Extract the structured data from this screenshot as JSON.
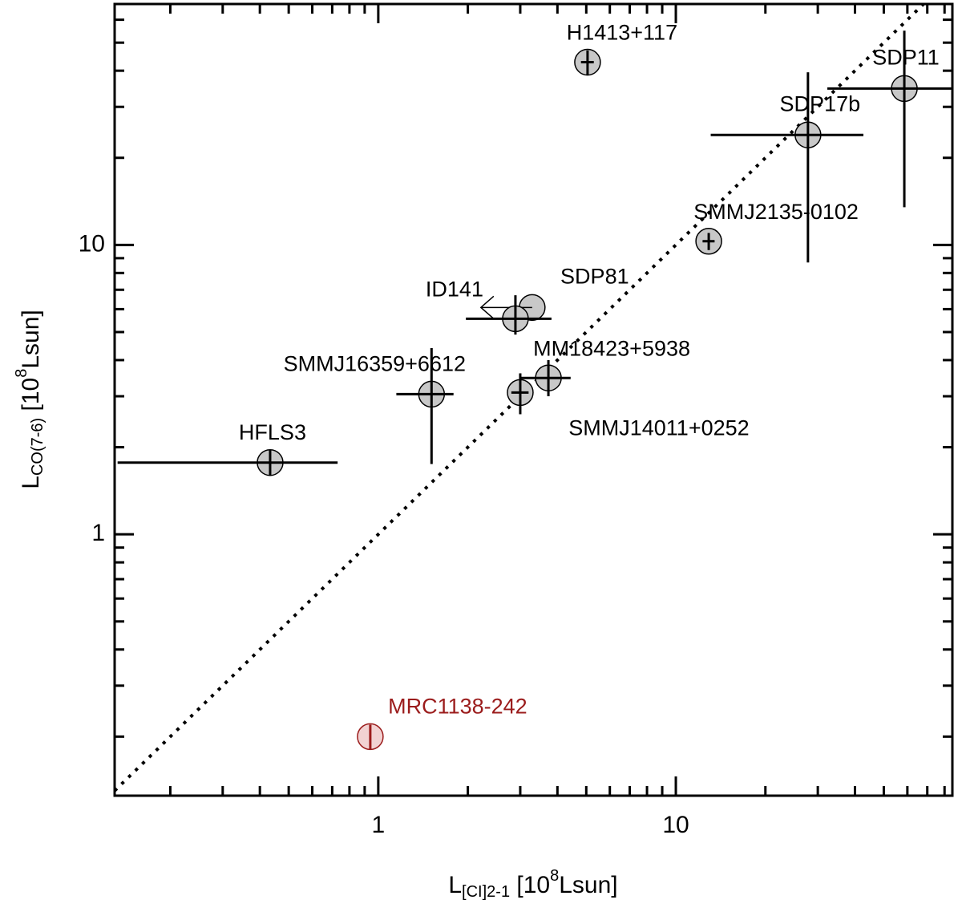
{
  "chart_data": {
    "type": "scatter",
    "xlabel": [
      "L",
      "[CI]2-1",
      " [10",
      "8",
      "Lsun]"
    ],
    "ylabel": [
      "L",
      "CO(7-6)",
      " [10",
      "8",
      "Lsun]"
    ],
    "log_x": true,
    "log_y": true,
    "xlim": [
      0.13,
      85
    ],
    "ylim": [
      0.125,
      68
    ],
    "xticks": [
      1,
      10
    ],
    "yticks": [
      1,
      10
    ],
    "xminorticks": [
      0.2,
      0.3,
      0.4,
      0.5,
      0.6,
      0.7,
      0.8,
      0.9,
      2,
      3,
      4,
      5,
      6,
      7,
      8,
      9,
      20,
      30,
      40,
      50,
      60,
      70,
      80
    ],
    "yminorticks": [
      0.2,
      0.3,
      0.4,
      0.5,
      0.6,
      0.7,
      0.8,
      0.9,
      2,
      3,
      4,
      5,
      6,
      7,
      8,
      9,
      20,
      30,
      40,
      50,
      60
    ],
    "one_to_one_line": true,
    "labels": [
      "H1413+117",
      "SDP11",
      "SDP17b",
      "SMMJ2135-0102",
      "SDP81",
      "ID141",
      "MM18423+5938",
      "SMMJ14011+0252",
      "SMMJ16359+6612",
      "HFLS3",
      "MRC1138-242"
    ],
    "x": [
      5.05,
      58.6,
      27.8,
      12.9,
      3.29,
      2.89,
      3.73,
      3.0,
      1.51,
      0.433,
      0.94
    ],
    "values": [
      42.8,
      34.7,
      24,
      10.3,
      6.08,
      5.56,
      3.47,
      3.09,
      3.05,
      1.77,
      0.2
    ],
    "x_low": [
      4.8,
      32.3,
      13.1,
      12.3,
      null,
      1.97,
      3.02,
      2.8,
      1.15,
      0.133,
      null
    ],
    "x_high": [
      5.3,
      85,
      42.7,
      13.5,
      null,
      3.82,
      4.43,
      3.2,
      1.79,
      0.73,
      null
    ],
    "y_low": [
      38.5,
      13.5,
      8.7,
      9.6,
      null,
      4.9,
      3.0,
      2.6,
      1.75,
      1.6,
      0.18
    ],
    "y_high": [
      47,
      55,
      39.5,
      11.0,
      null,
      6.7,
      4.0,
      3.6,
      4.4,
      1.95,
      0.22
    ],
    "x_upper_limit": [
      false,
      false,
      false,
      false,
      true,
      false,
      false,
      false,
      false,
      false,
      false
    ],
    "colors": [
      "#c8c8c8",
      "#c8c8c8",
      "#c8c8c8",
      "#c8c8c8",
      "#c8c8c8",
      "#c8c8c8",
      "#c8c8c8",
      "#c8c8c8",
      "#c8c8c8",
      "#c8c8c8",
      "#f2d2d2"
    ],
    "label_colors": [
      "#000000",
      "#000000",
      "#000000",
      "#000000",
      "#000000",
      "#000000",
      "#000000",
      "#000000",
      "#000000",
      "#000000",
      "#9b1c1c"
    ]
  }
}
